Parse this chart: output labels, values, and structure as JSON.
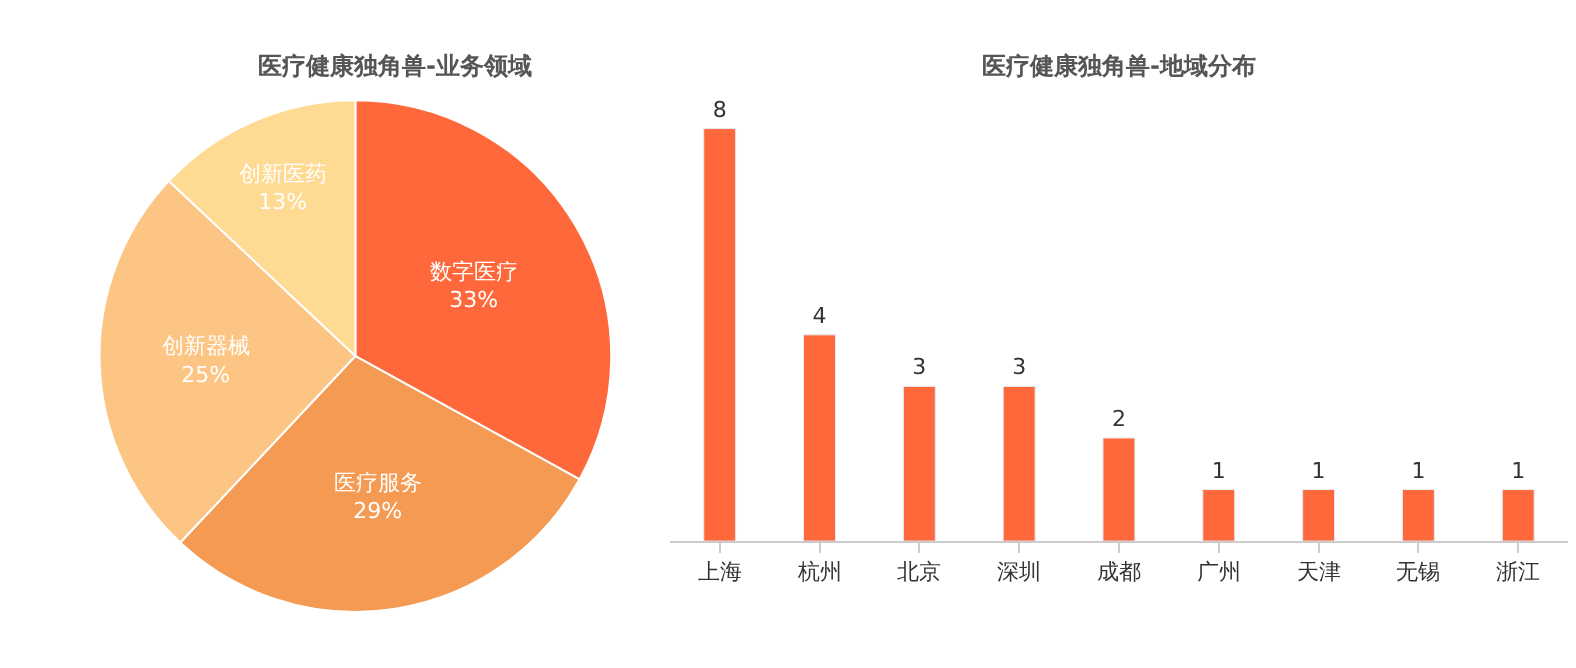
{
  "chart_data": [
    {
      "type": "pie",
      "title": "医疗健康独角兽-业务领域",
      "categories": [
        "数字医疗",
        "医疗服务",
        "创新器械",
        "创新医药"
      ],
      "values": [
        33,
        29,
        25,
        13
      ],
      "value_labels": [
        "33%",
        "29%",
        "25%",
        "13%"
      ],
      "colors": [
        "#ff683b",
        "#f59a52",
        "#fdc583",
        "#feda93"
      ]
    },
    {
      "type": "bar",
      "title": "医疗健康独角兽-地域分布",
      "categories": [
        "上海",
        "杭州",
        "北京",
        "深圳",
        "成都",
        "广州",
        "天津",
        "无锡",
        "浙江"
      ],
      "values": [
        8,
        4,
        3,
        3,
        2,
        1,
        1,
        1,
        1
      ],
      "color": "#ff683b",
      "data_labels": true
    }
  ]
}
